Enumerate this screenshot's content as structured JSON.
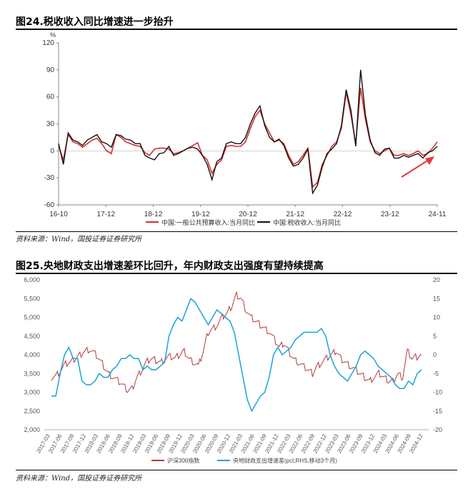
{
  "figure24": {
    "title": "图24.税收收入同比增速进一步抬升",
    "source": "资料来源：Wind，国投证券证券研究所"
  },
  "figure25": {
    "title": "图25.央地财政支出增速差环比回升，年内财政支出强度有望持续提高",
    "source": "资料来源：Wind，国投证券证券研究所"
  },
  "chart_data": [
    {
      "type": "line",
      "ylabel": "%",
      "ylim": [
        -60,
        120
      ],
      "yticks": [
        -60,
        -30,
        0,
        30,
        60,
        90,
        120
      ],
      "x_tick_labels": [
        "16-10",
        "17-12",
        "18-12",
        "19-12",
        "20-12",
        "21-12",
        "22-12",
        "23-12",
        "24-11"
      ],
      "legend_position": "bottom",
      "series": [
        {
          "name": "中国:一般公共预算收入:当月同比",
          "color": "#d32f2f",
          "values": [
            5,
            -10,
            18,
            10,
            8,
            4,
            8,
            12,
            14,
            8,
            0,
            -3,
            18,
            15,
            10,
            8,
            6,
            5,
            -2,
            -5,
            2,
            3,
            3,
            2,
            -3,
            -2,
            0,
            3,
            6,
            9,
            -5,
            -10,
            -25,
            -15,
            -10,
            5,
            6,
            5,
            5,
            10,
            25,
            38,
            45,
            30,
            20,
            10,
            12,
            8,
            -5,
            -15,
            -12,
            -5,
            3,
            -40,
            -35,
            -15,
            -5,
            5,
            10,
            25,
            65,
            40,
            8,
            70,
            35,
            10,
            0,
            -3,
            0,
            3,
            -5,
            -5,
            -3,
            -5,
            -3,
            0,
            -5,
            -3,
            3,
            10
          ]
        },
        {
          "name": "中国:税收收入:当月同比",
          "color": "#111111",
          "values": [
            8,
            -15,
            20,
            12,
            10,
            6,
            12,
            15,
            18,
            10,
            8,
            4,
            18,
            17,
            13,
            12,
            8,
            8,
            -5,
            -8,
            -10,
            -3,
            -2,
            5,
            -5,
            -3,
            0,
            3,
            4,
            2,
            -5,
            -15,
            -32,
            -12,
            -8,
            8,
            10,
            8,
            8,
            15,
            30,
            42,
            50,
            28,
            15,
            10,
            13,
            6,
            -8,
            -17,
            -15,
            -8,
            2,
            -47,
            -38,
            -18,
            -3,
            2,
            8,
            28,
            68,
            45,
            5,
            90,
            40,
            12,
            -2,
            -5,
            2,
            3,
            -8,
            -8,
            -5,
            -7,
            -5,
            -3,
            -8,
            -2,
            0,
            5
          ]
        }
      ]
    },
    {
      "type": "line",
      "ylim": [
        2000,
        6000
      ],
      "yticks": [
        2000,
        2500,
        3000,
        3500,
        4000,
        4500,
        5000,
        5500,
        6000
      ],
      "y2lim": [
        -20,
        20
      ],
      "y2ticks": [
        -20,
        -15,
        -10,
        -5,
        0,
        5,
        10,
        15,
        20
      ],
      "x_tick_labels": [
        "2017-03",
        "2017-06",
        "2017-09",
        "2017-12",
        "2018-03",
        "2018-06",
        "2018-09",
        "2018-12",
        "2019-03",
        "2019-06",
        "2019-09",
        "2019-12",
        "2020-03",
        "2020-06",
        "2020-09",
        "2020-12",
        "2021-03",
        "2021-06",
        "2021-09",
        "2021-12",
        "2022-03",
        "2022-06",
        "2022-09",
        "2022-12",
        "2023-03",
        "2023-06",
        "2023-09",
        "2023-12",
        "2024-03",
        "2024-06",
        "2024-09",
        "2024-12"
      ],
      "legend_position": "bottom",
      "series": [
        {
          "name": "沪深300指数",
          "color": "#b23a3a",
          "axis": "left",
          "values": [
            3400,
            3450,
            3600,
            3750,
            3800,
            3900,
            4000,
            4100,
            4150,
            4050,
            3900,
            3700,
            3500,
            3400,
            3300,
            3200,
            3050,
            3100,
            3400,
            3600,
            3800,
            3900,
            3850,
            3800,
            3900,
            3950,
            3900,
            4000,
            4100,
            3900,
            3800,
            3700,
            4100,
            4600,
            4700,
            4800,
            5000,
            5100,
            5300,
            5600,
            5500,
            5200,
            5000,
            4900,
            4800,
            4700,
            4600,
            4400,
            4200,
            4300,
            4100,
            3900,
            3800,
            3700,
            3600,
            3500,
            3700,
            3800,
            3900,
            4000,
            4100,
            3900,
            3800,
            3700,
            3600,
            3500,
            3400,
            3300,
            3400,
            3500,
            3400,
            3300,
            3300,
            3500,
            3400,
            4100,
            3900,
            3950,
            4000
          ]
        },
        {
          "name": "央地财政支出增速差(pct,RHS,移动3个月)",
          "color": "#1aa3d9",
          "axis": "right",
          "values": [
            -11,
            -11,
            -5,
            0,
            2,
            -1,
            -1,
            -7,
            -8,
            -8,
            -7,
            -5,
            -6,
            -6,
            -4,
            -3,
            -1,
            -1,
            0,
            -1,
            -1,
            -4,
            -3,
            -4,
            -4,
            -3,
            -2,
            5,
            8,
            10,
            9,
            12,
            15,
            14,
            12,
            10,
            8,
            10,
            12,
            11,
            10,
            9,
            6,
            0,
            -6,
            -12,
            -15,
            -13,
            -11,
            -10,
            -6,
            0,
            2,
            0,
            1,
            2,
            4,
            5,
            6,
            6,
            6,
            6,
            7,
            5,
            0,
            -3,
            -5,
            -6,
            -7,
            -5,
            -3,
            0,
            1,
            0,
            -1,
            -3,
            -4,
            -5,
            -6,
            -8,
            -9,
            -9,
            -7,
            -8,
            -5,
            -4
          ]
        }
      ]
    }
  ]
}
